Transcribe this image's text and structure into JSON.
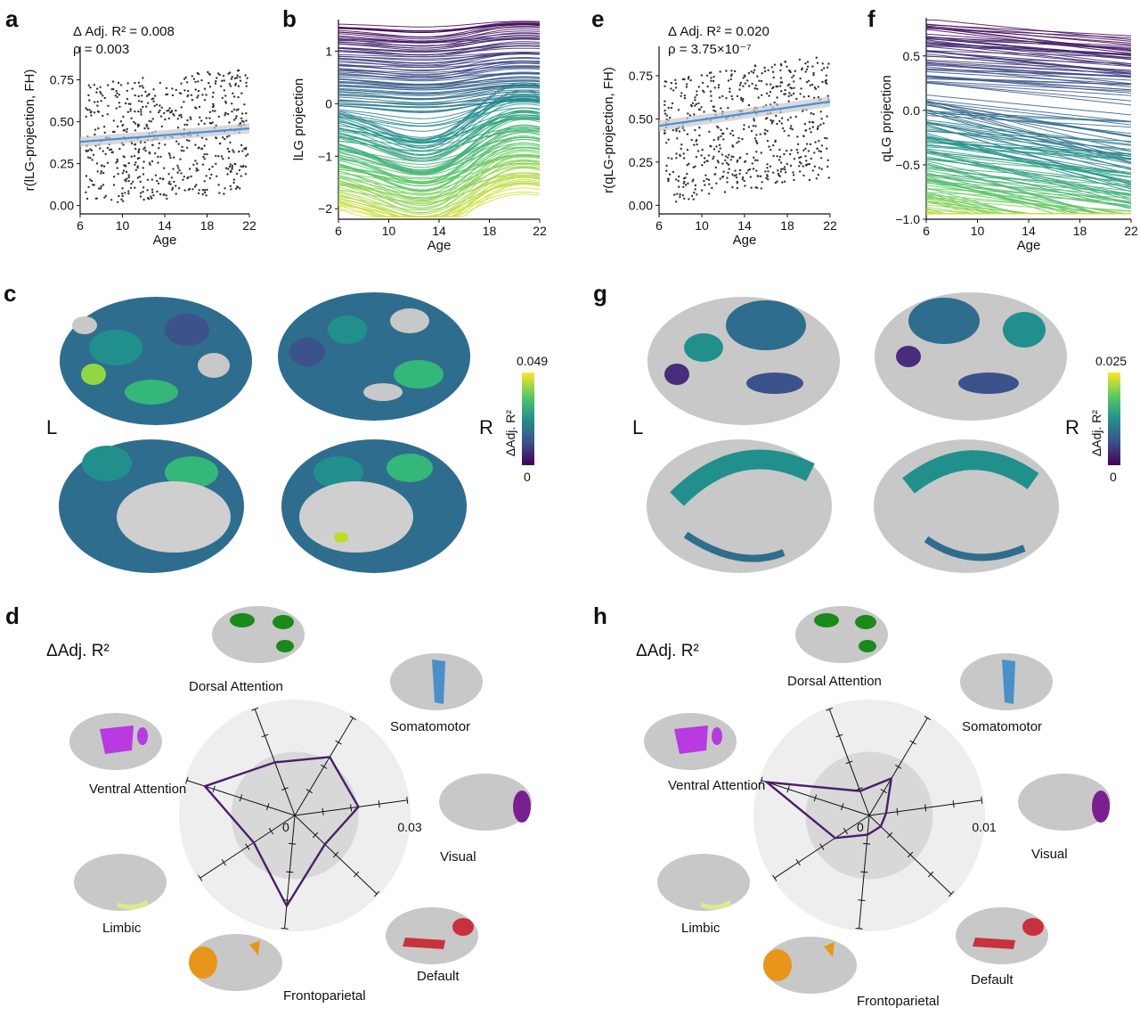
{
  "panels": {
    "a": "a",
    "b": "b",
    "c": "c",
    "d": "d",
    "e": "e",
    "f": "f",
    "g": "g",
    "h": "h"
  },
  "hemi": {
    "left": "L",
    "right": "R"
  },
  "colors": {
    "scatter_point": "#333333",
    "fit_line": "#4a90d9",
    "fit_band": "#c9c9c9",
    "radar_line": "#4b1d6b",
    "viridis_low": "#440154",
    "viridis_mid": "#21908d",
    "viridis_high": "#fde725",
    "brain_gray": "#c8c8c8",
    "disc_outer": "#eeeeee",
    "disc_inner": "#d8d8d8"
  },
  "chart_data": [
    {
      "id": "a",
      "type": "scatter",
      "xlabel": "Age",
      "ylabel": "r(lLG-projection, FH)",
      "xticks": [
        "6",
        "10",
        "14",
        "18",
        "22"
      ],
      "xlim": [
        6,
        22
      ],
      "yticks": [
        "0.00",
        "0.25",
        "0.50",
        "0.75"
      ],
      "ylim": [
        -0.05,
        0.95
      ],
      "stat_line1": "Δ Adj. R² = 0.008",
      "stat_line2": "ρ = 0.003",
      "fit": {
        "x": [
          6,
          22
        ],
        "y": [
          0.38,
          0.46
        ]
      },
      "n_points_approx": 600,
      "point_x_range": [
        6,
        22
      ],
      "point_y_range": [
        0.0,
        0.92
      ]
    },
    {
      "id": "b",
      "type": "line",
      "xlabel": "Age",
      "ylabel": "lLG projection",
      "xticks": [
        "6",
        "10",
        "14",
        "18",
        "22"
      ],
      "xlim": [
        6,
        22
      ],
      "yticks": [
        "−2",
        "−1",
        "0",
        "1"
      ],
      "ylim": [
        -2.2,
        1.6
      ],
      "series_shape": "wave: dip near age 11–12, peak near age 15",
      "value_range": [
        -2.0,
        1.5
      ]
    },
    {
      "id": "e",
      "type": "scatter",
      "xlabel": "Age",
      "ylabel": "r(qLG-projection, FH)",
      "xticks": [
        "6",
        "10",
        "14",
        "18",
        "22"
      ],
      "xlim": [
        6,
        22
      ],
      "yticks": [
        "0.00",
        "0.25",
        "0.50",
        "0.75"
      ],
      "ylim": [
        -0.05,
        0.92
      ],
      "stat_line1": "Δ Adj. R² = 0.020",
      "stat_line2": "ρ = 3.75×10⁻⁷",
      "fit": {
        "x": [
          6,
          22
        ],
        "y": [
          0.46,
          0.6
        ]
      },
      "n_points_approx": 600,
      "point_x_range": [
        6,
        22
      ],
      "point_y_range": [
        0.0,
        0.9
      ]
    },
    {
      "id": "f",
      "type": "line",
      "xlabel": "Age",
      "ylabel": "qLG projection",
      "xticks": [
        "6",
        "10",
        "14",
        "18",
        "22"
      ],
      "xlim": [
        6,
        22
      ],
      "yticks": [
        "−1.0",
        "−0.5",
        "0.0",
        "0.5"
      ],
      "ylim": [
        -1.0,
        0.85
      ],
      "series_shape": "approximately linear decreasing lines",
      "value_range": [
        -0.95,
        0.8
      ]
    },
    {
      "id": "d",
      "type": "radar",
      "title": "ΔAdj. R²",
      "rmin_label": "0",
      "rmax_label": "0.03",
      "rmax": 0.03,
      "axes": [
        "Somatomotor",
        "Visual",
        "Default",
        "Frontoparietal",
        "Limbic",
        "Ventral Attention",
        "Dorsal Attention"
      ],
      "values": [
        0.018,
        0.017,
        0.011,
        0.024,
        0.013,
        0.025,
        0.015
      ]
    },
    {
      "id": "h",
      "type": "radar",
      "title": "ΔAdj. R²",
      "rmin_label": "0",
      "rmax_label": "0.01",
      "rmax": 0.01,
      "axes": [
        "Somatomotor",
        "Visual",
        "Default",
        "Frontoparietal",
        "Limbic",
        "Ventral Attention",
        "Dorsal Attention"
      ],
      "values": [
        0.0038,
        0.0015,
        0.0014,
        0.0017,
        0.0036,
        0.0095,
        0.0023
      ]
    },
    {
      "id": "c",
      "type": "heatmap",
      "colorbar_label": "ΔAdj. R²",
      "colorbar_max": "0.049",
      "colorbar_min": "0"
    },
    {
      "id": "g",
      "type": "heatmap",
      "colorbar_label": "ΔAdj. R²",
      "colorbar_max": "0.025",
      "colorbar_min": "0"
    }
  ]
}
